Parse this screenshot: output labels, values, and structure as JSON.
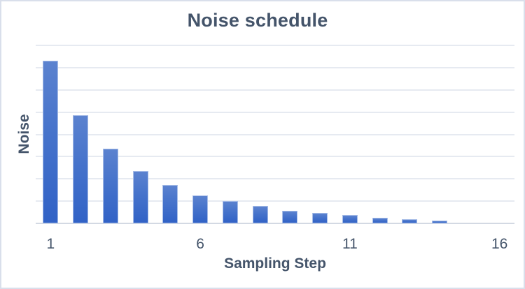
{
  "window": {
    "background": "#ffffff",
    "frame_border_color": "#d9dfeb"
  },
  "chart_data": {
    "type": "bar",
    "title": "Noise schedule",
    "xlabel": "Sampling Step",
    "ylabel": "Noise",
    "categories": [
      1,
      2,
      3,
      4,
      5,
      6,
      7,
      8,
      9,
      10,
      11,
      12,
      13,
      14,
      15,
      16
    ],
    "values": [
      7.3,
      4.85,
      3.35,
      2.35,
      1.73,
      1.27,
      1.01,
      0.77,
      0.58,
      0.47,
      0.37,
      0.26,
      0.18,
      0.12,
      0,
      0
    ],
    "ylim": [
      0,
      8
    ],
    "y_ticks_labeled": false,
    "x_tick_labels": [
      "1",
      "6",
      "11",
      "16"
    ],
    "x_tick_at_categories": [
      1,
      6,
      11,
      16
    ],
    "gridlines": {
      "axis": "y",
      "count": 9,
      "on": true
    },
    "legend": "none",
    "colors": {
      "bar_gradient_top": "#5b82cf",
      "bar_gradient_bottom": "#3162c6",
      "bar_border": "#bacbec",
      "gridline": "#e6eaf1",
      "axis_line": "#d3d9e3",
      "text": "#44546a"
    }
  }
}
